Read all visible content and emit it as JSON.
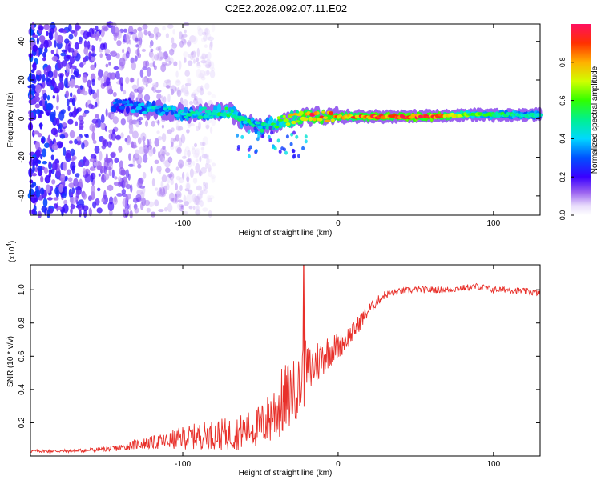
{
  "title": "C2E2.2026.092.07.11.E02",
  "chart_data": [
    {
      "type": "heatmap",
      "xlabel": "Height of straight line (km)",
      "ylabel": "Frequency (Hz)",
      "xlim": [
        -198,
        130
      ],
      "ylim": [
        -50,
        49
      ],
      "xticks": [
        -100,
        0,
        100
      ],
      "yticks": [
        -40,
        -20,
        0,
        20,
        40
      ],
      "colorbar": {
        "label": "Normalized spectral amplitude",
        "range": [
          0,
          1
        ],
        "ticks": [
          "0.0",
          "0.2",
          "0.4",
          "0.6",
          "0.8"
        ]
      },
      "ridge": {
        "description_points_x": [
          -140,
          -120,
          -100,
          -80,
          -70,
          -60,
          -50,
          -40,
          -30,
          -20,
          0,
          20,
          40,
          60,
          80,
          100,
          130
        ],
        "frequency_hz": [
          7,
          5,
          3,
          3,
          4,
          -2,
          -5,
          -2,
          0,
          1,
          1,
          1,
          1,
          1,
          2,
          2,
          2
        ],
        "amplitude": [
          0.35,
          0.45,
          0.5,
          0.55,
          0.6,
          0.55,
          0.5,
          0.6,
          0.8,
          0.95,
          0.9,
          0.95,
          0.98,
          1.0,
          0.7,
          0.6,
          0.5
        ]
      },
      "scatter_noise_region_x": [
        -198,
        -120
      ]
    },
    {
      "type": "line",
      "xlabel": "Height of straight line (km)",
      "ylabel": "SNR (10 * v/v)",
      "y_multiplier": "(x10",
      "y_multiplier_exp": "4",
      "y_multiplier_close": ")",
      "xlim": [
        -198,
        130
      ],
      "ylim": [
        0,
        1.15
      ],
      "xticks": [
        -100,
        0,
        100
      ],
      "yticks": [
        "0.2",
        "0.4",
        "0.6",
        "0.8",
        "1.0"
      ],
      "color": "#e8302a",
      "series": [
        {
          "name": "SNR",
          "x": [
            -198,
            -170,
            -150,
            -140,
            -130,
            -120,
            -110,
            -100,
            -90,
            -80,
            -70,
            -60,
            -50,
            -45,
            -40,
            -35,
            -30,
            -25,
            -22,
            -20,
            -15,
            -10,
            -5,
            0,
            5,
            10,
            15,
            20,
            25,
            30,
            40,
            50,
            60,
            70,
            80,
            90,
            100,
            110,
            120,
            130
          ],
          "y": [
            0.03,
            0.03,
            0.04,
            0.05,
            0.07,
            0.08,
            0.09,
            0.11,
            0.12,
            0.13,
            0.13,
            0.15,
            0.18,
            0.22,
            0.28,
            0.33,
            0.38,
            0.42,
            0.48,
            0.5,
            0.55,
            0.6,
            0.64,
            0.66,
            0.7,
            0.75,
            0.82,
            0.88,
            0.93,
            0.97,
            0.99,
            1.0,
            1.0,
            1.0,
            1.01,
            1.02,
            1.0,
            1.0,
            0.99,
            0.98
          ],
          "noise": [
            0.01,
            0.01,
            0.015,
            0.02,
            0.03,
            0.04,
            0.05,
            0.07,
            0.08,
            0.09,
            0.1,
            0.11,
            0.13,
            0.16,
            0.2,
            0.22,
            0.2,
            0.18,
            0.35,
            0.17,
            0.15,
            0.12,
            0.1,
            0.08,
            0.07,
            0.06,
            0.05,
            0.04,
            0.03,
            0.025,
            0.02,
            0.02,
            0.02,
            0.02,
            0.02,
            0.02,
            0.02,
            0.02,
            0.02,
            0.02
          ]
        }
      ]
    }
  ]
}
